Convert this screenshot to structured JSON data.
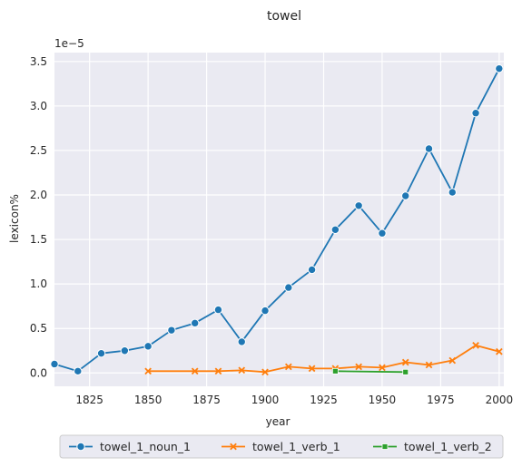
{
  "chart_data": {
    "type": "line",
    "title": "towel",
    "xlabel": "year",
    "ylabel": "lexicon%",
    "y_scale_label": "1e−5",
    "xlim": [
      1810,
      2002
    ],
    "ylim": [
      -0.15,
      3.6
    ],
    "x_ticks": [
      1825,
      1850,
      1875,
      1900,
      1925,
      1950,
      1975,
      2000
    ],
    "y_ticks": [
      0.0,
      0.5,
      1.0,
      1.5,
      2.0,
      2.5,
      3.0,
      3.5
    ],
    "grid": true,
    "legend_placement": "bottom-center",
    "series": [
      {
        "name": "towel_1_noun_1",
        "color": "#1f77b4",
        "marker": "circle",
        "x": [
          1810,
          1820,
          1830,
          1840,
          1850,
          1860,
          1870,
          1880,
          1890,
          1900,
          1910,
          1920,
          1930,
          1940,
          1950,
          1960,
          1970,
          1980,
          1990,
          2000
        ],
        "y": [
          0.1,
          0.02,
          0.22,
          0.25,
          0.3,
          0.48,
          0.56,
          0.71,
          0.35,
          0.7,
          0.96,
          1.16,
          1.61,
          1.88,
          1.57,
          1.99,
          2.52,
          2.03,
          2.92,
          3.42
        ]
      },
      {
        "name": "towel_1_verb_1",
        "color": "#ff7f0e",
        "marker": "x",
        "x": [
          1850,
          1870,
          1880,
          1890,
          1900,
          1910,
          1920,
          1930,
          1940,
          1950,
          1960,
          1970,
          1980,
          1990,
          2000
        ],
        "y": [
          0.02,
          0.02,
          0.02,
          0.03,
          0.01,
          0.07,
          0.05,
          0.05,
          0.07,
          0.06,
          0.12,
          0.09,
          0.14,
          0.31,
          0.24
        ]
      },
      {
        "name": "towel_1_verb_2",
        "color": "#2ca02c",
        "marker": "square",
        "x": [
          1930,
          1960
        ],
        "y": [
          0.02,
          0.01
        ]
      }
    ]
  }
}
